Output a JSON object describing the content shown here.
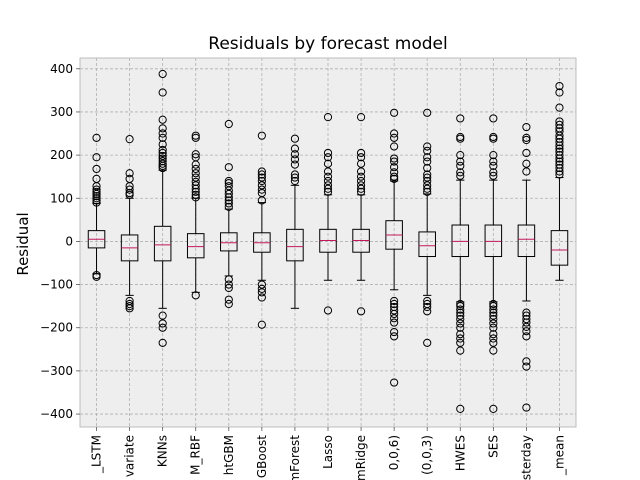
{
  "chart_data": {
    "type": "box",
    "title": "Residuals by forecast model",
    "xlabel": "",
    "ylabel": "Residual",
    "ylim": [
      -430,
      425
    ],
    "yticks": [
      -400,
      -300,
      -200,
      -100,
      0,
      100,
      200,
      300,
      400
    ],
    "grid": true,
    "colors": {
      "background": "#eeeeee",
      "grid": "#b0b0b0",
      "box": "#000000",
      "median": "#c2185b"
    },
    "categories": [
      "_LSTM",
      "variate",
      "KNNs",
      "M_RBF",
      "htGBM",
      "GBoost",
      "mForest",
      "Lasso",
      "mRidge",
      "0,0,6)",
      "(0,0,3)",
      "HWES",
      "SES",
      "sterday",
      "_mean"
    ],
    "boxes": [
      {
        "q1": -15,
        "median": 5,
        "q3": 25,
        "whisker_low": -75,
        "whisker_high": 88,
        "outliers": [
          240,
          195,
          168,
          145,
          128,
          120,
          115,
          110,
          105,
          100,
          95,
          90,
          -78,
          -82
        ]
      },
      {
        "q1": -45,
        "median": -15,
        "q3": 15,
        "whisker_low": -125,
        "whisker_high": 100,
        "outliers": [
          237,
          158,
          145,
          128,
          120,
          112,
          108,
          -138,
          -145,
          -150,
          -155
        ]
      },
      {
        "q1": -45,
        "median": -8,
        "q3": 35,
        "whisker_low": -155,
        "whisker_high": 165,
        "outliers": [
          388,
          345,
          282,
          262,
          250,
          240,
          225,
          212,
          205,
          198,
          192,
          186,
          180,
          175,
          170,
          -172,
          -190,
          -200,
          -235
        ]
      },
      {
        "q1": -38,
        "median": -12,
        "q3": 18,
        "whisker_low": -118,
        "whisker_high": 100,
        "outliers": [
          245,
          240,
          202,
          195,
          178,
          168,
          158,
          148,
          138,
          130,
          122,
          115,
          108,
          102,
          -125
        ]
      },
      {
        "q1": -22,
        "median": -3,
        "q3": 20,
        "whisker_low": -80,
        "whisker_high": 75,
        "outliers": [
          272,
          172,
          140,
          135,
          128,
          118,
          110,
          102,
          95,
          88,
          80,
          -88,
          -100,
          -108,
          -135,
          -145
        ]
      },
      {
        "q1": -25,
        "median": -3,
        "q3": 20,
        "whisker_low": -90,
        "whisker_high": 90,
        "outliers": [
          245,
          162,
          155,
          148,
          140,
          130,
          120,
          112,
          95,
          -100,
          -110,
          -118,
          -130,
          -193
        ]
      },
      {
        "q1": -45,
        "median": -12,
        "q3": 28,
        "whisker_low": -155,
        "whisker_high": 130,
        "outliers": [
          238,
          215,
          202,
          190,
          178,
          155,
          148,
          140
        ]
      },
      {
        "q1": -25,
        "median": 2,
        "q3": 28,
        "whisker_low": -90,
        "whisker_high": 108,
        "outliers": [
          288,
          205,
          195,
          180,
          162,
          150,
          140,
          130,
          122,
          115,
          -160
        ]
      },
      {
        "q1": -25,
        "median": 2,
        "q3": 28,
        "whisker_low": -90,
        "whisker_high": 108,
        "outliers": [
          288,
          205,
          195,
          180,
          162,
          150,
          140,
          130,
          122,
          115,
          -162
        ]
      },
      {
        "q1": -18,
        "median": 15,
        "q3": 48,
        "whisker_low": -112,
        "whisker_high": 140,
        "outliers": [
          298,
          250,
          240,
          220,
          192,
          185,
          172,
          160,
          150,
          145,
          -138,
          -145,
          -152,
          -160,
          -168,
          -178,
          -188,
          -210,
          -220,
          -327
        ]
      },
      {
        "q1": -35,
        "median": -10,
        "q3": 22,
        "whisker_low": -125,
        "whisker_high": 110,
        "outliers": [
          298,
          220,
          210,
          195,
          185,
          170,
          155,
          148,
          140,
          130,
          122,
          115,
          -138,
          -145,
          -152,
          -162,
          -235
        ]
      },
      {
        "q1": -35,
        "median": 0,
        "q3": 38,
        "whisker_low": -140,
        "whisker_high": 142,
        "outliers": [
          285,
          242,
          238,
          200,
          185,
          175,
          160,
          152,
          -145,
          -150,
          -158,
          -165,
          -172,
          -180,
          -190,
          -200,
          -215,
          -225,
          -235,
          -253,
          -388
        ]
      },
      {
        "q1": -35,
        "median": 0,
        "q3": 38,
        "whisker_low": -140,
        "whisker_high": 142,
        "outliers": [
          285,
          242,
          238,
          200,
          185,
          175,
          160,
          152,
          -145,
          -150,
          -158,
          -165,
          -172,
          -180,
          -190,
          -200,
          -215,
          -225,
          -235,
          -253,
          -388
        ]
      },
      {
        "q1": -35,
        "median": 5,
        "q3": 38,
        "whisker_low": -138,
        "whisker_high": 142,
        "outliers": [
          265,
          240,
          235,
          205,
          180,
          162,
          -165,
          -172,
          -180,
          -188,
          -198,
          -208,
          -220,
          -278,
          -290,
          -385
        ]
      },
      {
        "q1": -55,
        "median": -20,
        "q3": 25,
        "whisker_low": -90,
        "whisker_high": 148,
        "outliers": [
          360,
          345,
          310,
          278,
          270,
          262,
          255,
          245,
          238,
          230,
          222,
          215,
          208,
          200,
          192,
          185,
          178,
          170,
          162,
          155
        ]
      }
    ]
  }
}
